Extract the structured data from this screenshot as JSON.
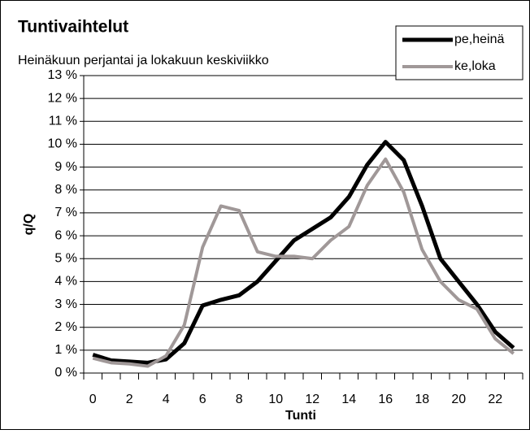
{
  "chart_data": {
    "type": "line",
    "title": "Tuntivaihtelut",
    "subtitle": "Heinäkuun perjantai ja lokakuun keskiviikko",
    "x_label": "Tunti",
    "y_label": "q/Q",
    "categories": [
      0,
      null,
      2,
      null,
      4,
      null,
      6,
      null,
      8,
      null,
      10,
      null,
      12,
      null,
      14,
      null,
      16,
      null,
      18,
      null,
      20,
      null,
      22,
      null
    ],
    "series": [
      {
        "name": "pe,heinä",
        "color": "#000000",
        "values": [
          0.8,
          0.55,
          0.5,
          0.45,
          0.6,
          1.3,
          2.95,
          3.2,
          3.4,
          4.0,
          4.9,
          5.8,
          6.3,
          6.8,
          7.7,
          9.1,
          10.1,
          9.3,
          7.3,
          5.0,
          4.0,
          3.0,
          1.8,
          1.1
        ]
      },
      {
        "name": "ke,loka",
        "color": "#a09898",
        "values": [
          0.65,
          0.45,
          0.4,
          0.3,
          0.75,
          2.1,
          5.5,
          7.3,
          7.1,
          5.3,
          5.1,
          5.1,
          5.0,
          5.8,
          6.4,
          8.2,
          9.35,
          7.9,
          5.4,
          4.0,
          3.2,
          2.8,
          1.5,
          0.85
        ]
      }
    ],
    "ylim": [
      0,
      13
    ],
    "yticks": [
      {
        "value": 0,
        "label": "0 %"
      },
      {
        "value": 1,
        "label": "1 %"
      },
      {
        "value": 2,
        "label": "2 %"
      },
      {
        "value": 3,
        "label": "3 %"
      },
      {
        "value": 4,
        "label": "4 %"
      },
      {
        "value": 5,
        "label": "5 %"
      },
      {
        "value": 6,
        "label": "6 %"
      },
      {
        "value": 7,
        "label": "7 %"
      },
      {
        "value": 8,
        "label": "8 %"
      },
      {
        "value": 9,
        "label": "9 %"
      },
      {
        "value": 10,
        "label": "10 %"
      },
      {
        "value": 11,
        "label": "11 %"
      },
      {
        "value": 12,
        "label": "12 %"
      },
      {
        "value": 13,
        "label": "13 %"
      }
    ],
    "grid": true,
    "legend": "upper right"
  }
}
